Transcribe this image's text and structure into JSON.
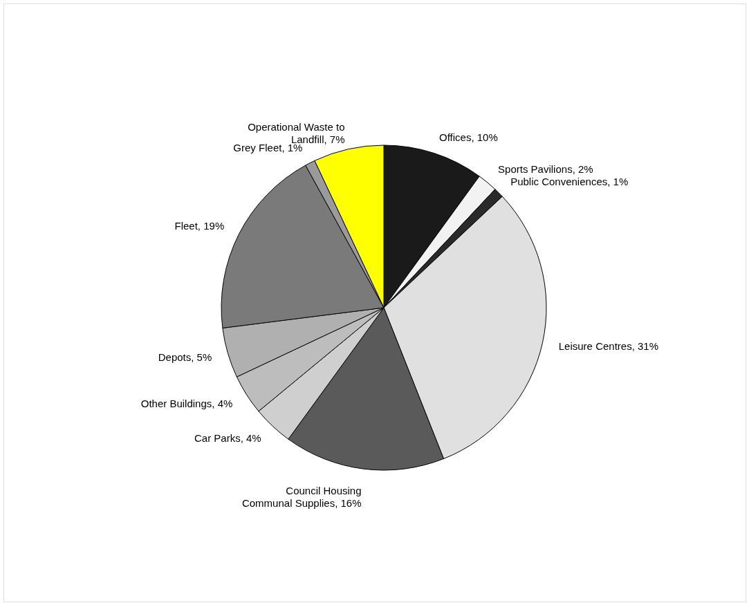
{
  "chart_data": {
    "type": "pie",
    "categories": [
      "Offices",
      "Sports Pavilions",
      "Public Conveniences",
      "Leisure Centres",
      "Council Housing Communal Supplies",
      "Car Parks",
      "Other Buildings",
      "Depots",
      "Fleet",
      "Grey Fleet",
      "Operational Waste to Landfill"
    ],
    "values": [
      10,
      2,
      1,
      31,
      16,
      4,
      4,
      5,
      19,
      1,
      7
    ],
    "value_labels": [
      "10%",
      "2%",
      "1%",
      "31%",
      "16%",
      "4%",
      "4%",
      "5%",
      "19%",
      "1%",
      "7%"
    ],
    "colors": [
      "#1a1a1a",
      "#f2f2f2",
      "#2a2a2a",
      "#e0e0e0",
      "#5a5a5a",
      "#cfcfcf",
      "#bdbdbd",
      "#b0b0b0",
      "#7a7a7a",
      "#9a9a9a",
      "#ffff00"
    ]
  }
}
